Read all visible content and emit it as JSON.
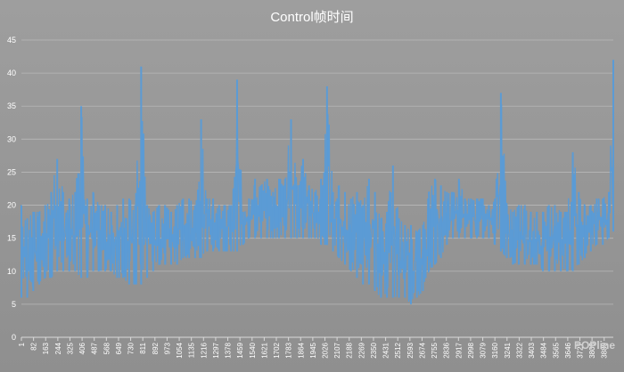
{
  "chart_data": {
    "type": "line",
    "title": "Control帧时间",
    "xlabel": "",
    "ylabel": "",
    "ylim": [
      0,
      45
    ],
    "y_ticks": [
      "0",
      "5",
      "10",
      "15",
      "20",
      "25",
      "30",
      "35",
      "40",
      "45"
    ],
    "x_tick_labels": [
      "1",
      "82",
      "163",
      "244",
      "325",
      "406",
      "487",
      "568",
      "649",
      "730",
      "811",
      "892",
      "973",
      "1054",
      "1135",
      "1216",
      "1297",
      "1378",
      "1459",
      "1540",
      "1621",
      "1702",
      "1783",
      "1864",
      "1945",
      "2026",
      "2107",
      "2188",
      "2269",
      "2350",
      "2431",
      "2512",
      "2593",
      "2674",
      "2755",
      "2836",
      "2917",
      "2998",
      "3079",
      "3160",
      "3241",
      "3322",
      "3403",
      "3484",
      "3565",
      "3646",
      "3727",
      "3808",
      "3889"
    ],
    "x_max": 3950,
    "grid": true,
    "legend": "none",
    "series": [
      {
        "color": "#5b9bd5",
        "x": [
          1,
          40,
          80,
          120,
          160,
          200,
          240,
          280,
          320,
          360,
          400,
          440,
          480,
          520,
          560,
          600,
          640,
          680,
          720,
          760,
          800,
          840,
          880,
          920,
          960,
          1000,
          1040,
          1080,
          1120,
          1160,
          1200,
          1240,
          1280,
          1320,
          1360,
          1400,
          1440,
          1480,
          1520,
          1560,
          1600,
          1640,
          1680,
          1720,
          1760,
          1800,
          1840,
          1880,
          1920,
          1960,
          2000,
          2040,
          2080,
          2120,
          2160,
          2200,
          2240,
          2280,
          2320,
          2360,
          2400,
          2440,
          2480,
          2520,
          2560,
          2600,
          2640,
          2680,
          2720,
          2760,
          2800,
          2840,
          2880,
          2920,
          2960,
          3000,
          3040,
          3080,
          3120,
          3160,
          3200,
          3240,
          3280,
          3320,
          3360,
          3400,
          3440,
          3480,
          3520,
          3560,
          3600,
          3640,
          3680,
          3720,
          3760,
          3800,
          3840,
          3880,
          3920,
          3950
        ],
        "ymin": [
          6,
          6,
          7,
          8,
          9,
          9,
          10,
          10,
          10,
          10,
          9,
          9,
          10,
          10,
          10,
          10,
          9,
          9,
          8,
          8,
          8,
          9,
          10,
          11,
          11,
          11,
          11,
          12,
          12,
          12,
          12,
          13,
          13,
          13,
          13,
          13,
          13,
          14,
          15,
          15,
          15,
          15,
          15,
          15,
          15,
          15,
          15,
          15,
          15,
          15,
          14,
          14,
          13,
          12,
          11,
          10,
          9,
          8,
          8,
          7,
          6,
          6,
          6,
          6,
          6,
          5,
          6,
          7,
          10,
          11,
          12,
          14,
          15,
          15,
          15,
          15,
          15,
          15,
          15,
          14,
          13,
          12,
          11,
          11,
          11,
          11,
          11,
          10,
          10,
          10,
          10,
          10,
          10,
          11,
          12,
          13,
          14,
          14,
          15,
          16
        ],
        "ymax": [
          20,
          18,
          19,
          19,
          20,
          22,
          27,
          22,
          21,
          22,
          35,
          21,
          22,
          20,
          20,
          19,
          20,
          21,
          21,
          20,
          41,
          20,
          19,
          20,
          20,
          19,
          20,
          21,
          21,
          20,
          33,
          21,
          21,
          20,
          20,
          20,
          39,
          19,
          21,
          24,
          23,
          24,
          22,
          24,
          24,
          33,
          23,
          27,
          23,
          22,
          24,
          38,
          22,
          23,
          22,
          21,
          22,
          20,
          24,
          22,
          18,
          19,
          26,
          18,
          17,
          17,
          16,
          17,
          22,
          24,
          23,
          22,
          22,
          24,
          21,
          21,
          21,
          21,
          20,
          21,
          37,
          20,
          19,
          20,
          20,
          19,
          19,
          19,
          20,
          20,
          19,
          19,
          28,
          22,
          20,
          20,
          21,
          21,
          22,
          42
        ]
      }
    ]
  },
  "watermark": "POPline"
}
